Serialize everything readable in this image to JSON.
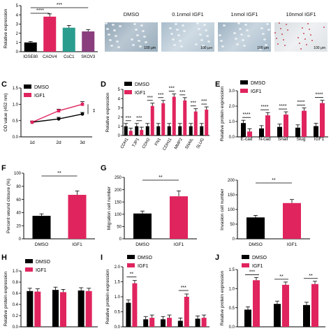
{
  "panels": {
    "A": {
      "chart_data": {
        "type": "bar",
        "categories": [
          "IOSE80",
          "CAOV4",
          "CoC1",
          "SKOV3"
        ],
        "values": [
          1.0,
          3.8,
          2.6,
          2.2
        ],
        "errors": [
          0.1,
          0.3,
          0.25,
          0.2
        ],
        "colors": [
          "#000000",
          "#e0245e",
          "#2a9d8f",
          "#8a3e7e"
        ],
        "ylabel": "Relative expression",
        "ylim": [
          0,
          5
        ],
        "yticks": [
          "0",
          "1",
          "2",
          "3",
          "4",
          "5"
        ],
        "significance": [
          "****",
          "***"
        ]
      }
    },
    "B": {
      "labels": [
        "DMSO",
        "0.1nmol IGF1",
        "1nmol IGF1",
        "10nmol IGF1"
      ],
      "scale": "100 μm"
    },
    "C": {
      "letter": "C",
      "chart_data": {
        "type": "line",
        "x": [
          "1d",
          "2d",
          "3d"
        ],
        "series": [
          {
            "name": "DMSO",
            "values": [
              0.45,
              0.55,
              0.7
            ],
            "errors": [
              0.03,
              0.05,
              0.05
            ]
          },
          {
            "name": "IGF1",
            "values": [
              0.45,
              0.8,
              1.0
            ],
            "errors": [
              0.03,
              0.05,
              0.08
            ]
          }
        ],
        "ylabel": "OD value (452 nm)",
        "ylim": [
          0.0,
          1.5
        ],
        "yticks": [
          "0.0",
          "0.5",
          "1.0",
          "1.5"
        ],
        "significance": "**"
      }
    },
    "D": {
      "letter": "D",
      "chart_data": {
        "type": "bar",
        "categories": [
          "CDH1",
          "TJP1",
          "CDH2",
          "FN1",
          "CDH11",
          "MMP2",
          "SNAIL",
          "SLUG"
        ],
        "series": [
          {
            "name": "DMSO",
            "values": [
              1,
              1,
              1,
              1,
              1,
              1,
              1,
              1
            ]
          },
          {
            "name": "IGF1",
            "values": [
              0.5,
              0.6,
              3.2,
              3.5,
              4.2,
              3.8,
              2.6,
              2.8
            ]
          }
        ],
        "ylabel": "Relative expression",
        "ylim": [
          0,
          5
        ],
        "yticks": [
          "0",
          "1",
          "2",
          "3",
          "4",
          "5"
        ],
        "significance": "***"
      }
    },
    "E": {
      "letter": "E",
      "chart_data": {
        "type": "bar",
        "categories": [
          "E-cad",
          "N-cad",
          "Snail",
          "Slug",
          "IGF1"
        ],
        "series": [
          {
            "name": "DMSO",
            "values": [
              0.9,
              0.55,
              0.65,
              0.6,
              0.7
            ]
          },
          {
            "name": "IGF1",
            "values": [
              0.35,
              1.4,
              1.45,
              1.7,
              2.2
            ]
          }
        ],
        "ylabel": "Relative protein expression",
        "ylim": [
          0.0,
          3.0
        ],
        "yticks": [
          "0.0",
          "1.0",
          "2.0",
          "3.0"
        ],
        "significance": "****"
      }
    },
    "F": {
      "letter": "F",
      "chart_data": {
        "type": "bar",
        "categories": [
          "DMSO",
          "IGF1"
        ],
        "values": [
          35,
          67
        ],
        "errors": [
          3,
          6
        ],
        "ylabel": "Percent wound closure (%)",
        "ylim": [
          0,
          100
        ],
        "yticks": [
          "0",
          "20",
          "40",
          "60",
          "80",
          "100"
        ],
        "significance": "**"
      }
    },
    "G": {
      "letter": "G",
      "chart_data": {
        "type": "bar",
        "categories": [
          "DMSO",
          "IGF1"
        ],
        "values": [
          103,
          173
        ],
        "errors": [
          10,
          22
        ],
        "ylabel": "Migration cell number",
        "ylim": [
          0,
          250
        ],
        "yticks": [
          "0",
          "50",
          "100",
          "150",
          "200",
          "250"
        ],
        "significance": "**"
      }
    },
    "G2": {
      "chart_data": {
        "type": "bar",
        "categories": [
          "DMSO",
          "IGF1"
        ],
        "values": [
          73,
          122
        ],
        "errors": [
          7,
          12
        ],
        "ylabel": "Invasion cell number",
        "ylim": [
          0,
          200
        ],
        "yticks": [
          "0",
          "50",
          "100",
          "150",
          "200"
        ],
        "significance": "**"
      }
    },
    "H": {
      "letter": "H",
      "chart_data": {
        "type": "bar",
        "categories": [
          "",
          "",
          ""
        ],
        "series": [
          {
            "name": "DMSO",
            "values": [
              0.64,
              0.66,
              0.65
            ]
          },
          {
            "name": "IGF1",
            "values": [
              0.63,
              0.62,
              0.64
            ]
          }
        ],
        "ylabel": "Relative protein expression",
        "ylim": [
          0.0,
          1.0
        ],
        "yticks": [
          "0.0",
          "0.2",
          "0.4",
          "0.6",
          "0.8",
          "1.0"
        ]
      }
    },
    "I": {
      "letter": "I",
      "chart_data": {
        "type": "bar",
        "categories": [
          "",
          "",
          "",
          "",
          ""
        ],
        "series": [
          {
            "name": "DMSO",
            "values": [
              0.8,
              0.25,
              0.25,
              0.2,
              0.27
            ]
          },
          {
            "name": "IGF1",
            "values": [
              1.45,
              0.3,
              0.3,
              1.0,
              0.3
            ]
          }
        ],
        "ylabel": "Relative protein expression",
        "ylim": [
          0.0,
          2.0
        ],
        "yticks": [
          "0.0",
          "0.5",
          "1.0",
          "1.5",
          "2.0"
        ],
        "significance": [
          "**",
          "***"
        ]
      }
    },
    "J": {
      "letter": "J",
      "chart_data": {
        "type": "bar",
        "categories": [
          "",
          "",
          ""
        ],
        "series": [
          {
            "name": "DMSO",
            "values": [
              0.45,
              0.6,
              0.57
            ]
          },
          {
            "name": "IGF1",
            "values": [
              1.22,
              1.1,
              1.12
            ]
          }
        ],
        "ylabel": "Relative protein expression",
        "ylim": [
          0.0,
          1.5
        ],
        "yticks": [
          "0.0",
          "0.5",
          "1.0",
          "1.5"
        ],
        "significance": [
          "***",
          "**",
          "**"
        ]
      }
    }
  },
  "colors": {
    "dmso": "#000000",
    "igf1": "#e0245e"
  }
}
